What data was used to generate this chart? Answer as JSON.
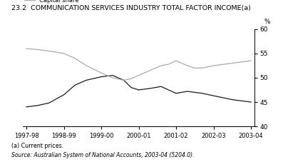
{
  "title": "23.2  COMMUNICATION SERVICES INDUSTRY TOTAL FACTOR INCOME(a)",
  "x_labels": [
    "1997-98",
    "1998-99",
    "1999-00",
    "2000-01",
    "2001-02",
    "2002-03",
    "2003-04"
  ],
  "x_positions": [
    0,
    1,
    2,
    3,
    4,
    5,
    6
  ],
  "labour_share": [
    44.0,
    44.3,
    44.8,
    46.5,
    48.5,
    49.5,
    50.2,
    50.5,
    49.5,
    48.0,
    47.5,
    47.8,
    48.2,
    47.5,
    46.8,
    47.2,
    47.0,
    46.8,
    46.3,
    45.5,
    45.0
  ],
  "capital_share": [
    56.0,
    55.8,
    55.5,
    55.0,
    54.0,
    52.5,
    51.0,
    50.0,
    49.5,
    49.8,
    50.5,
    51.5,
    52.5,
    52.8,
    53.5,
    52.5,
    52.0,
    52.0,
    52.5,
    53.0,
    53.5
  ],
  "x_fine": [
    0,
    0.3,
    0.6,
    1.0,
    1.3,
    1.6,
    2.0,
    2.3,
    2.6,
    2.8,
    3.0,
    3.3,
    3.6,
    3.8,
    4.0,
    4.3,
    4.5,
    4.7,
    5.0,
    5.5,
    6.0
  ],
  "ylim": [
    40,
    60
  ],
  "yticks": [
    40,
    45,
    50,
    55,
    60
  ],
  "labour_color": "#1a1a1a",
  "capital_color": "#aaaaaa",
  "footnote1": "(a) Current prices.",
  "footnote2": "Source: Australian System of National Accounts, 2003-04 (5204.0).",
  "background_color": "#ffffff"
}
